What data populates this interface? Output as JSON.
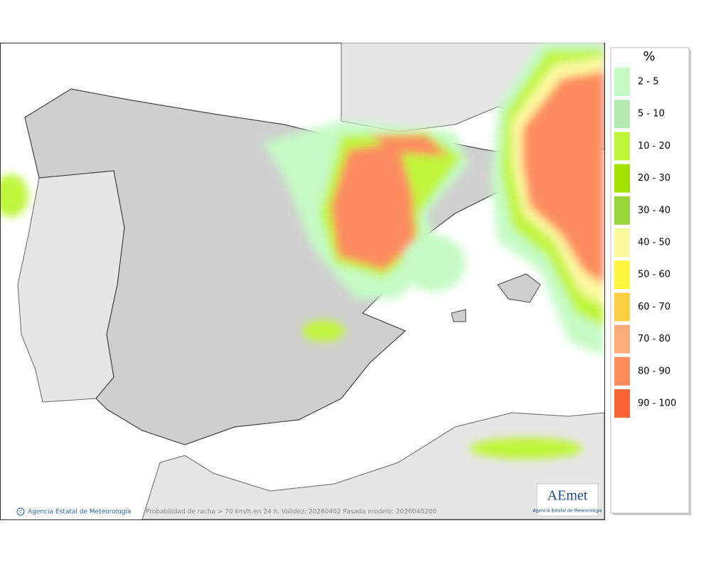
{
  "map": {
    "copyright": "Agencia Estatal de Meteorología",
    "caption": "Probabilidad de racha > 70 km/h en 24 h. Validez: 20260402 Pasada modelo: 2026040200",
    "logo": {
      "name": "AEmet",
      "subtitle": "Agencia Estatal de Meteorología"
    }
  },
  "legend": {
    "title": "%",
    "items": [
      {
        "label": "2 - 5",
        "color": "#c6fac6"
      },
      {
        "label": "5 - 10",
        "color": "#b2eab2"
      },
      {
        "label": "10 - 20",
        "color": "#c0f53a"
      },
      {
        "label": "20 - 30",
        "color": "#a6e000"
      },
      {
        "label": "30 - 40",
        "color": "#9cd43c"
      },
      {
        "label": "40 - 50",
        "color": "#fcf8a0"
      },
      {
        "label": "50 - 60",
        "color": "#fcf640"
      },
      {
        "label": "60 - 70",
        "color": "#fcd040"
      },
      {
        "label": "70 - 80",
        "color": "#fcac7a"
      },
      {
        "label": "80 - 90",
        "color": "#fc8c5e"
      },
      {
        "label": "90 - 100",
        "color": "#fc6434"
      }
    ]
  }
}
